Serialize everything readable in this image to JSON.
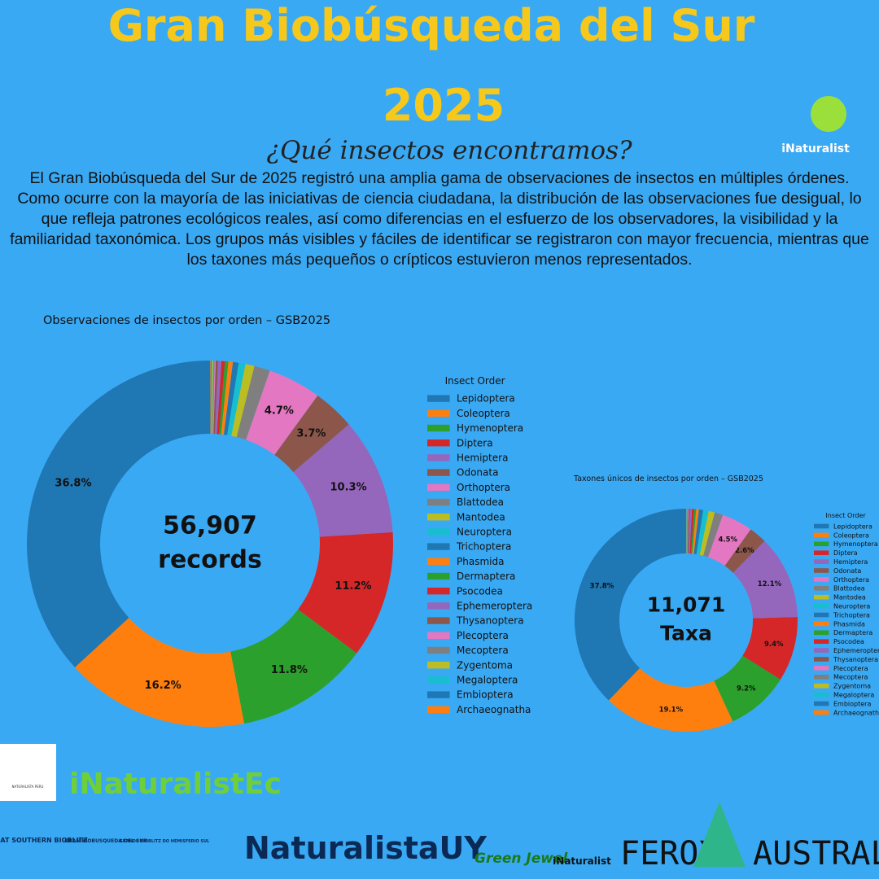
{
  "header": {
    "title_line1": "Gran Biobúsqueda del Sur",
    "title_line2": "2025",
    "subtitle": "¿Qué insectos encontramos?",
    "brand": "iNaturalist"
  },
  "intro": "El Gran Biobúsqueda del Sur de 2025 registró una amplia gama de observaciones de insectos en múltiples órdenes. Como ocurre con la mayoría de las iniciativas de ciencia ciudadana, la distribución de las observaciones fue desigual, lo que refleja patrones ecológicos reales, así como diferencias en el esfuerzo de los observadores, la visibilidad y la familiaridad taxonómica. Los grupos más visibles y fáciles de identificar se registraron con mayor frecuencia, mientras que los taxones más pequeños o crípticos estuvieron menos representados.",
  "chart_data": [
    {
      "type": "donut",
      "title": "Observaciones de insectos por orden – GSB2025",
      "legend_title": "Insect Order",
      "center_text": [
        "56,907",
        "records"
      ],
      "categories": [
        "Lepidoptera",
        "Coleoptera",
        "Hymenoptera",
        "Diptera",
        "Hemiptera",
        "Odonata",
        "Orthoptera",
        "Blattodea",
        "Mantodea",
        "Neuroptera",
        "Trichoptera",
        "Phasmida",
        "Dermaptera",
        "Psocodea",
        "Ephemeroptera",
        "Thysanoptera",
        "Plecoptera",
        "Mecoptera",
        "Zygentoma",
        "Megaloptera",
        "Embioptera",
        "Archaeognatha"
      ],
      "values": [
        36.8,
        16.2,
        11.8,
        11.2,
        10.3,
        3.7,
        4.7,
        1.4,
        0.8,
        0.6,
        0.5,
        0.4,
        0.3,
        0.3,
        0.3,
        0.2,
        0.1,
        0.1,
        0.1,
        0.1,
        0.05,
        0.05
      ],
      "value_labels": [
        "36.8%",
        "16.2%",
        "11.8%",
        "11.2%",
        "10.3%",
        "3.7%",
        "4.7%",
        null,
        null,
        null,
        null,
        null,
        null,
        null,
        null,
        null,
        null,
        null,
        null,
        null,
        null,
        null
      ],
      "colors": [
        "#1f77b4",
        "#ff7f0e",
        "#2ca02c",
        "#d62728",
        "#9467bd",
        "#8c564b",
        "#e377c2",
        "#7f7f7f",
        "#bcbd22",
        "#17becf",
        "#1f77b4",
        "#ff7f0e",
        "#2ca02c",
        "#d62728",
        "#9467bd",
        "#8c564b",
        "#e377c2",
        "#7f7f7f",
        "#bcbd22",
        "#17becf",
        "#1f77b4",
        "#ff7f0e"
      ]
    },
    {
      "type": "donut",
      "title": "Taxones únicos de insectos por orden – GSB2025",
      "legend_title": "Insect Order",
      "center_text": [
        "11,071",
        "Taxa"
      ],
      "categories": [
        "Lepidoptera",
        "Coleoptera",
        "Hymenoptera",
        "Diptera",
        "Hemiptera",
        "Odonata",
        "Orthoptera",
        "Blattodea",
        "Mantodea",
        "Neuroptera",
        "Trichoptera",
        "Phasmida",
        "Dermaptera",
        "Psocodea",
        "Ephemeroptera",
        "Thysanoptera",
        "Plecoptera",
        "Mecoptera",
        "Zygentoma",
        "Megaloptera",
        "Embioptera",
        "Archaeognatha"
      ],
      "values": [
        37.8,
        19.1,
        9.2,
        9.4,
        12.1,
        2.6,
        4.5,
        1.2,
        0.9,
        0.8,
        0.6,
        0.4,
        0.3,
        0.3,
        0.3,
        0.2,
        0.1,
        0.1,
        0.05,
        0.05,
        0.02,
        0.02
      ],
      "value_labels": [
        "37.8%",
        "19.1%",
        "9.2%",
        "9.4%",
        "12.1%",
        "2.6%",
        "4.5%",
        null,
        null,
        null,
        null,
        null,
        null,
        null,
        null,
        null,
        null,
        null,
        null,
        null,
        null,
        null
      ],
      "colors": [
        "#1f77b4",
        "#ff7f0e",
        "#2ca02c",
        "#d62728",
        "#9467bd",
        "#8c564b",
        "#e377c2",
        "#7f7f7f",
        "#bcbd22",
        "#17becf",
        "#1f77b4",
        "#ff7f0e",
        "#2ca02c",
        "#d62728",
        "#9467bd",
        "#8c564b",
        "#e377c2",
        "#7f7f7f",
        "#bcbd22",
        "#17becf",
        "#1f77b4",
        "#ff7f0e"
      ]
    }
  ],
  "logos": {
    "peru": "NATURALISTA PERU",
    "ec": "iNaturalistEc",
    "gsb": "GREAT SOUTHERN BIOBLITZ",
    "gbs": "GRAN BIOBUSQUEDA DEL SUR",
    "gbhs": "GRANDE BIOBLITZ DO HEMISFERIO SUL",
    "uy": "NaturalistaUY",
    "gj": "Green Jewel",
    "inat": "iNaturalist",
    "ferox": "FEROX",
    "australis": "AUSTRALIS"
  }
}
